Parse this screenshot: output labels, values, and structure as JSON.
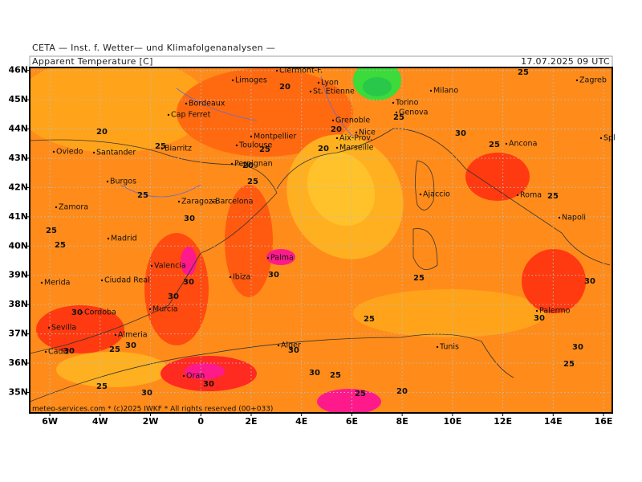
{
  "header": {
    "institute": "CETA — Inst. f. Wetter— und Klimafolgenanalysen —",
    "title": "Apparent Temperature [C]",
    "datetime": "17.07.2025 09 UTC"
  },
  "footer": "meteo-services.com * (c)2025 IWKF * All rights reserved (00+033)",
  "map": {
    "xlim": [
      -6.8,
      16.35
    ],
    "ylim": [
      34.3,
      46.1
    ],
    "xticks": [
      {
        "value": -6,
        "label": "6W"
      },
      {
        "value": -4,
        "label": "4W"
      },
      {
        "value": -2,
        "label": "2W"
      },
      0,
      {
        "value": 2,
        "label": "2E"
      },
      {
        "value": 4,
        "label": "4E"
      },
      {
        "value": 6,
        "label": "6E"
      },
      {
        "value": 8,
        "label": "8E"
      },
      {
        "value": 10,
        "label": "10E"
      },
      {
        "value": 12,
        "label": "12E"
      },
      {
        "value": 14,
        "label": "14E"
      },
      {
        "value": 16,
        "label": "16E"
      }
    ],
    "yticks": [
      {
        "value": 35,
        "label": "35N"
      },
      {
        "value": 36,
        "label": "36N"
      },
      {
        "value": 37,
        "label": "37N"
      },
      {
        "value": 38,
        "label": "38N"
      },
      {
        "value": 39,
        "label": "39N"
      },
      {
        "value": 40,
        "label": "40N"
      },
      {
        "value": 41,
        "label": "41N"
      },
      {
        "value": 42,
        "label": "42N"
      },
      {
        "value": 43,
        "label": "43N"
      },
      {
        "value": 44,
        "label": "44N"
      },
      {
        "value": 45,
        "label": "45N"
      },
      {
        "value": 46,
        "label": "46N"
      }
    ],
    "grid": true,
    "cities": [
      "Clermont-F.",
      "Limoges",
      "Lyon",
      "St. Etienne",
      "Bordeaux",
      "Milano",
      "Torino",
      "Genova",
      "Zagreb",
      "Cap Ferret",
      "Grenoble",
      "Montpellier",
      "Nice",
      "Toulouse",
      "Aix-Prov.",
      "Marseille",
      "Ancona",
      "Oviedo",
      "Santander",
      "Biarritz",
      "Spl",
      "Perpignan",
      "Ajaccio",
      "Burgos",
      "Zaragoza",
      "Barcelona",
      "Roma",
      "Zamora",
      "Napoli",
      "Madrid",
      "Palma",
      "Valencia",
      "Merida",
      "Ciudad Real",
      "Ibiza",
      "Murcia",
      "Cordoba",
      "Palermo",
      "Sevilla",
      "Almeria",
      "Cadiz",
      "Alger",
      "Tunis",
      "Oran"
    ],
    "contour_labels": [
      20,
      20,
      20,
      20,
      20,
      20,
      25,
      25,
      25,
      25,
      25,
      25,
      25,
      25,
      25,
      25,
      25,
      25,
      25,
      25,
      25,
      25,
      25,
      30,
      30,
      30,
      30,
      30,
      30,
      30,
      30,
      30,
      30,
      30,
      30,
      30,
      30,
      30
    ]
  }
}
